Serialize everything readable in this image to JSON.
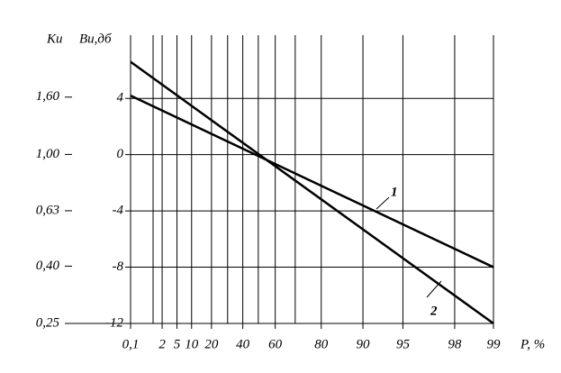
{
  "chart_data": {
    "type": "line",
    "xlabel": "P, %",
    "ylabel": "Bи,дб",
    "y2label": "Kи",
    "xscale": "gumbel",
    "xlim": [
      0.1,
      99
    ],
    "xticks": [
      {
        "value": 0.1,
        "label": "0,1"
      },
      2,
      5,
      10,
      20,
      40,
      60,
      80,
      90,
      95,
      98,
      99
    ],
    "minor_xticks": [
      1,
      30,
      50,
      70
    ],
    "ylim": [
      -12,
      8.5
    ],
    "yticks": [
      4,
      0,
      -4,
      -8,
      -12
    ],
    "y2scale": "log",
    "y2lim": [
      0.25,
      2.66
    ],
    "y2ticks": [
      {
        "value": 1.6,
        "label": "1,60"
      },
      {
        "value": 1.0,
        "label": "1,00"
      },
      {
        "value": 0.63,
        "label": "0,63"
      },
      {
        "value": 0.4,
        "label": "0,40"
      },
      {
        "value": 0.25,
        "label": "0,25"
      }
    ],
    "grid": true,
    "series": [
      {
        "name": "1",
        "color": "#000000",
        "x": [
          0.1,
          99
        ],
        "values": [
          4.2,
          -8
        ]
      },
      {
        "name": "2",
        "color": "#000000",
        "x": [
          0.1,
          99
        ],
        "values": [
          6.6,
          -12
        ]
      }
    ]
  }
}
